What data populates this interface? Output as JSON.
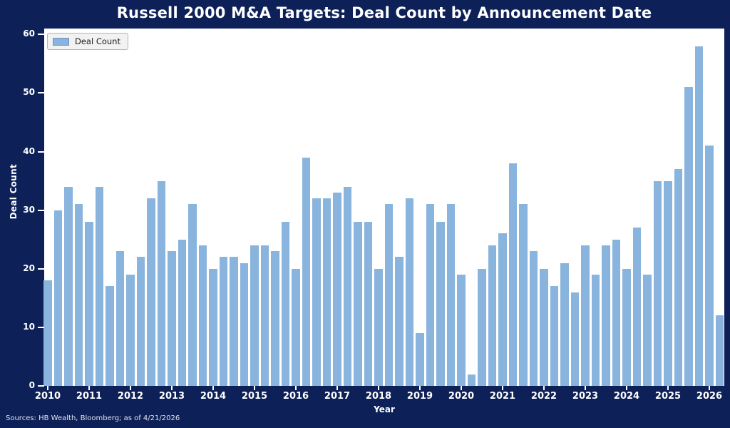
{
  "title": "Russell 2000 M&A Targets: Deal Count by Announcement Date",
  "legend": {
    "label": "Deal Count"
  },
  "source_note": "Sources: HB Wealth, Bloomberg; as of 4/21/2026",
  "colors": {
    "background": "#0d2158",
    "plot_background": "#ffffff",
    "bar": "#89b4dd",
    "axis_text": "#ffffff",
    "legend_background": "#f2f2f2",
    "legend_border": "#b4b4b4",
    "legend_text": "#1a1a1a",
    "source_text": "#dfe1ec"
  },
  "chart_data": {
    "type": "bar",
    "title": "Russell 2000 M&A Targets: Deal Count by Announcement Date",
    "xlabel": "Year",
    "ylabel": "Deal Count",
    "series_name": "Deal Count",
    "frequency": "quarterly",
    "ylim": [
      0,
      61
    ],
    "yticks": [
      0,
      10,
      20,
      30,
      40,
      50,
      60
    ],
    "grid": false,
    "legend_position": "upper left",
    "years": [
      {
        "year": "2010",
        "values": [
          18,
          30,
          34,
          31
        ]
      },
      {
        "year": "2011",
        "values": [
          28,
          34,
          17,
          23
        ]
      },
      {
        "year": "2012",
        "values": [
          19,
          22,
          32,
          35
        ]
      },
      {
        "year": "2013",
        "values": [
          23,
          25,
          31,
          24
        ]
      },
      {
        "year": "2014",
        "values": [
          20,
          22,
          22,
          21
        ]
      },
      {
        "year": "2015",
        "values": [
          24,
          24,
          23,
          28
        ]
      },
      {
        "year": "2016",
        "values": [
          20,
          39,
          32,
          32
        ]
      },
      {
        "year": "2017",
        "values": [
          33,
          34,
          28,
          28
        ]
      },
      {
        "year": "2018",
        "values": [
          20,
          31,
          22,
          32
        ]
      },
      {
        "year": "2019",
        "values": [
          9,
          31,
          28,
          31
        ]
      },
      {
        "year": "2020",
        "values": [
          19,
          2,
          20,
          24
        ]
      },
      {
        "year": "2021",
        "values": [
          26,
          38,
          31,
          23
        ]
      },
      {
        "year": "2022",
        "values": [
          20,
          17,
          21,
          16
        ]
      },
      {
        "year": "2023",
        "values": [
          24,
          19,
          24,
          25
        ]
      },
      {
        "year": "2024",
        "values": [
          20,
          27,
          19,
          35
        ]
      },
      {
        "year": "2025",
        "values": [
          35,
          37,
          51,
          58
        ]
      },
      {
        "year": "2026",
        "values": [
          41,
          12
        ]
      }
    ]
  }
}
